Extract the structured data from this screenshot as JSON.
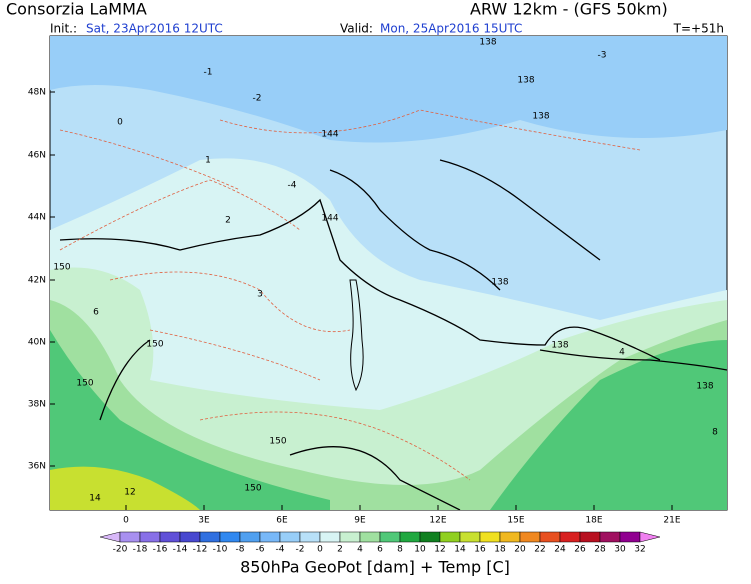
{
  "header": {
    "title": "Consorzia LaMMA",
    "model": "ARW 12km - (GFS 50km)",
    "init_label": "Init.:",
    "init": "Sat, 23Apr2016 12UTC",
    "valid_label": "Valid:",
    "valid": "Mon, 25Apr2016 15UTC",
    "lead": "T=+51h"
  },
  "map": {
    "lat_labels": [
      "48N",
      "46N",
      "44N",
      "42N",
      "40N",
      "38N",
      "36N"
    ],
    "lon_labels": [
      "0",
      "3E",
      "6E",
      "9E",
      "12E",
      "15E",
      "18E",
      "21E"
    ],
    "contour_labels": [
      "138",
      "138",
      "138",
      "144",
      "144",
      "150",
      "150",
      "150",
      "150",
      "150",
      "138",
      "138",
      "138",
      "-1",
      "-2",
      "-3",
      "0",
      "1",
      "2",
      "3",
      "4",
      "6",
      "8",
      "14",
      "12",
      "-4"
    ]
  },
  "colorbar": {
    "labels": [
      "-20",
      "-18",
      "-16",
      "-14",
      "-12",
      "-10",
      "-8",
      "-6",
      "-4",
      "-2",
      "0",
      "2",
      "4",
      "6",
      "8",
      "10",
      "12",
      "14",
      "16",
      "18",
      "20",
      "22",
      "24",
      "26",
      "28",
      "30",
      "32"
    ],
    "colors": [
      "#d8b8f8",
      "#a890f0",
      "#8870e8",
      "#6050d8",
      "#4848d0",
      "#3070e0",
      "#3088f0",
      "#50a0f0",
      "#78b8f8",
      "#98cef8",
      "#b8e0f8",
      "#d8f4f4",
      "#c8f0d0",
      "#a0e0a0",
      "#50c878",
      "#20a840",
      "#108020",
      "#90d020",
      "#c8e030",
      "#f0e020",
      "#f0b820",
      "#f08820",
      "#e85020",
      "#d82020",
      "#b81020",
      "#a01060",
      "#900090",
      "#f080f0"
    ],
    "title": "850hPa GeoPot [dam] + Temp [C]"
  }
}
